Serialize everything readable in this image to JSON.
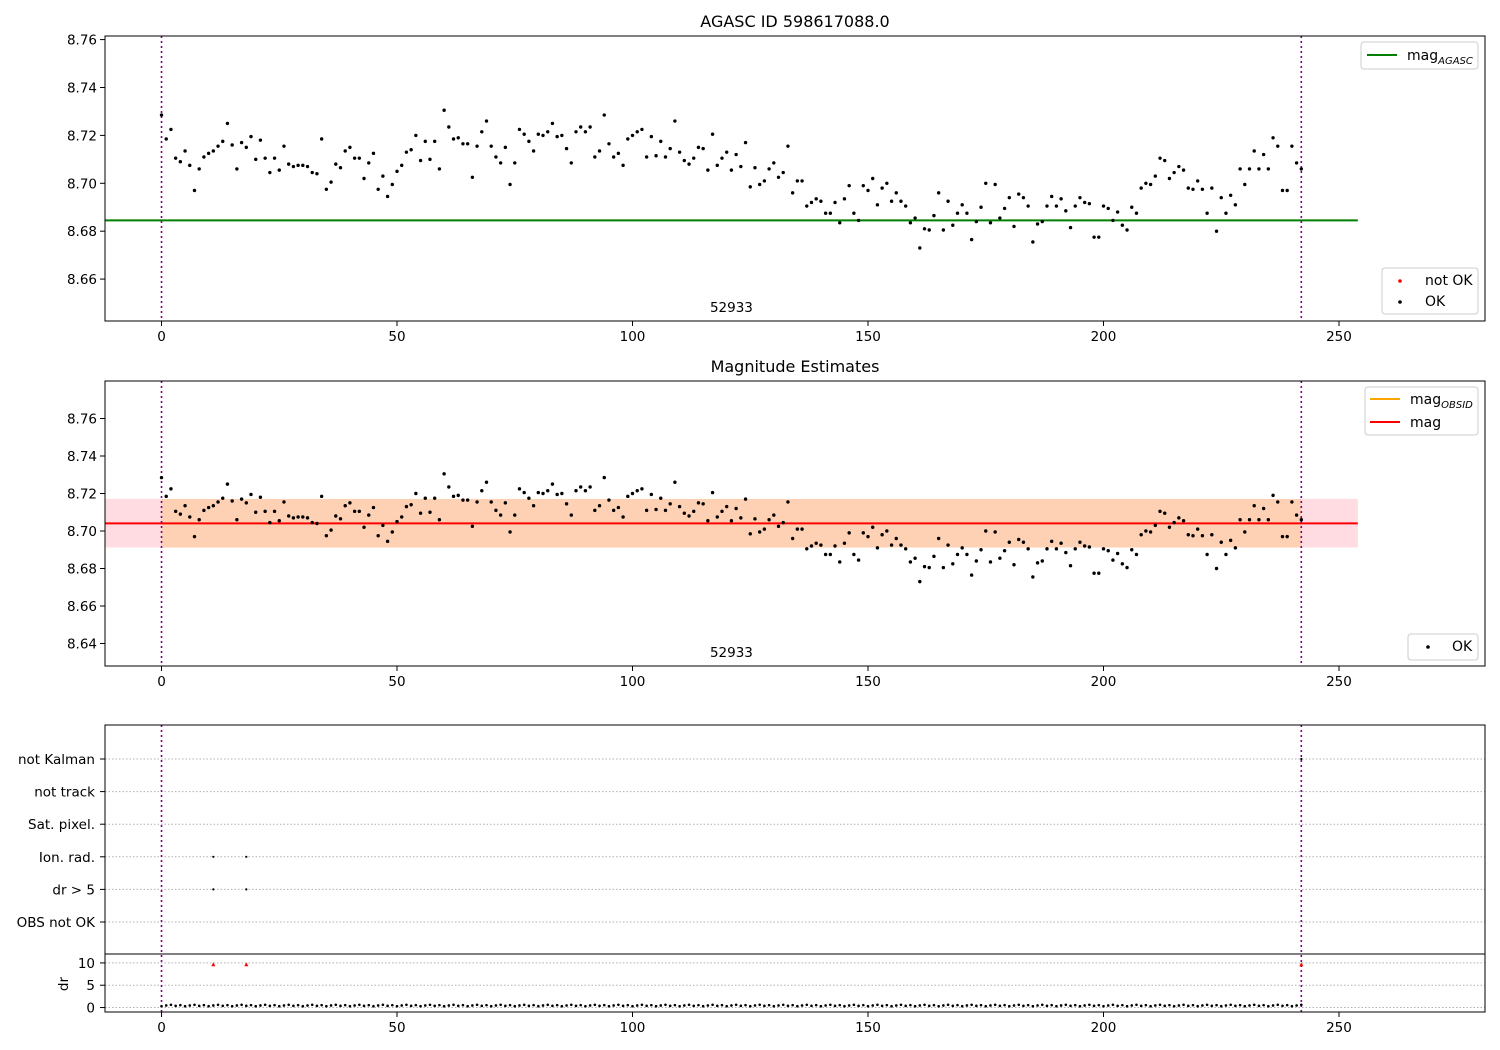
{
  "chart_data": [
    {
      "type": "scatter",
      "title": "AGASC ID 598617088.0",
      "xlabel": "",
      "ylabel": "",
      "xlim": [
        -12,
        281
      ],
      "ylim": [
        8.6425,
        8.7615
      ],
      "x_ticks": [
        "0",
        "50",
        "100",
        "150",
        "200",
        "250"
      ],
      "y_ticks": [
        "8.66",
        "8.68",
        "8.70",
        "8.72",
        "8.74",
        "8.76"
      ],
      "obsid_label": "52933",
      "obs_boundaries": [
        0,
        242
      ],
      "legend_top": [
        {
          "label": "mag",
          "sub": "AGASC",
          "color": "#008000"
        }
      ],
      "legend_bottom": [
        {
          "label": "not OK",
          "color": "#ff0000"
        },
        {
          "label": "OK",
          "color": "#000000"
        }
      ],
      "mag_agasc": 8.6845,
      "reference_line_color": "#008000",
      "series": [
        {
          "name": "OK",
          "color": "#000000",
          "values": [
            8.7285,
            8.7185,
            8.7225,
            8.7105,
            8.709,
            8.7135,
            8.7075,
            8.697,
            8.706,
            8.711,
            8.7125,
            8.7135,
            8.7155,
            8.7175,
            8.725,
            8.716,
            8.706,
            8.717,
            8.715,
            8.7195,
            8.71,
            8.718,
            8.7105,
            8.7045,
            8.7105,
            8.7055,
            8.7155,
            8.708,
            8.707,
            8.7075,
            8.7075,
            8.707,
            8.7045,
            8.704,
            8.7185,
            8.6975,
            8.7005,
            8.708,
            8.7065,
            8.7135,
            8.715,
            8.7105,
            8.7105,
            8.702,
            8.7085,
            8.7125,
            8.6975,
            8.703,
            8.6945,
            8.6995,
            8.705,
            8.7075,
            8.713,
            8.714,
            8.72,
            8.7095,
            8.7175,
            8.71,
            8.7175,
            8.706,
            8.7305,
            8.7235,
            8.7185,
            8.719,
            8.7165,
            8.7165,
            8.7025,
            8.7155,
            8.7215,
            8.726,
            8.7155,
            8.711,
            8.7085,
            8.715,
            8.6995,
            8.7085,
            8.7225,
            8.7205,
            8.7175,
            8.7135,
            8.7205,
            8.72,
            8.7215,
            8.725,
            8.7195,
            8.72,
            8.7145,
            8.7085,
            8.7215,
            8.7235,
            8.7215,
            8.7235,
            8.711,
            8.7135,
            8.7285,
            8.7165,
            8.711,
            8.7125,
            8.7075,
            8.7185,
            8.72,
            8.7215,
            8.7225,
            8.711,
            8.7195,
            8.7115,
            8.7175,
            8.711,
            8.7145,
            8.726,
            8.713,
            8.7095,
            8.708,
            8.7105,
            8.715,
            8.7145,
            8.7055,
            8.7205,
            8.7075,
            8.7105,
            8.713,
            8.7055,
            8.712,
            8.707,
            8.717,
            8.6985,
            8.7065,
            8.6995,
            8.701,
            8.706,
            8.7085,
            8.7025,
            8.7045,
            8.7155,
            8.696,
            8.701,
            8.701,
            8.6905,
            8.692,
            8.6935,
            8.6925,
            8.6875,
            8.6875,
            8.692,
            8.6835,
            8.6935,
            8.699,
            8.6875,
            8.6845,
            8.699,
            8.697,
            8.702,
            8.691,
            8.698,
            8.7,
            8.6925,
            8.696,
            8.6925,
            8.6905,
            8.6835,
            8.6855,
            8.673,
            8.681,
            8.6805,
            8.6865,
            8.696,
            8.6805,
            8.6925,
            8.6825,
            8.6875,
            8.691,
            8.6875,
            8.6765,
            8.684,
            8.69,
            8.7,
            8.6835,
            8.6995,
            8.6855,
            8.6895,
            8.694,
            8.682,
            8.6955,
            8.694,
            8.6905,
            8.6755,
            8.683,
            8.684,
            8.6905,
            8.6945,
            8.6905,
            8.6935,
            8.6885,
            8.6815,
            8.6905,
            8.694,
            8.692,
            8.6915,
            8.6775,
            8.6775,
            8.6905,
            8.6895,
            8.6845,
            8.688,
            8.6825,
            8.6805,
            8.69,
            8.6875,
            8.698,
            8.7,
            8.6995,
            8.703,
            8.7105,
            8.7095,
            8.702,
            8.7045,
            8.707,
            8.7055,
            8.698,
            8.6975,
            8.701,
            8.6975,
            8.6875,
            8.698,
            8.68,
            8.694,
            8.6875,
            8.695,
            8.691,
            8.706,
            8.6995,
            8.706,
            8.7135,
            8.706,
            8.712,
            8.706,
            8.719,
            8.7155,
            8.697,
            8.697,
            8.7155,
            8.7085,
            8.706
          ]
        }
      ]
    },
    {
      "type": "scatter",
      "title": "Magnitude Estimates",
      "xlabel": "",
      "ylabel": "",
      "xlim": [
        -12,
        281
      ],
      "ylim": [
        8.628,
        8.78
      ],
      "x_ticks": [
        "0",
        "50",
        "100",
        "150",
        "200",
        "250"
      ],
      "y_ticks": [
        "8.64",
        "8.66",
        "8.68",
        "8.70",
        "8.72",
        "8.74",
        "8.76"
      ],
      "obsid_label": "52933",
      "obs_boundaries": [
        0,
        242
      ],
      "legend_top": [
        {
          "label": "mag",
          "sub": "OBSID",
          "color": "#ffa500"
        },
        {
          "label": "mag",
          "sub": "",
          "color": "#ff0000"
        }
      ],
      "legend_bottom": [
        {
          "label": "OK",
          "color": "#000000"
        }
      ],
      "mag": 8.7041,
      "mag_band": [
        8.6912,
        8.7171
      ],
      "mag_obsid": 8.7041,
      "band_color": "#ffc0cb",
      "obsid_band_color": "#ffa500",
      "series_ref": "same OK points as top panel"
    },
    {
      "type": "scatter",
      "title": "",
      "xlabel": "",
      "ylabel": "dr",
      "xlim": [
        -12,
        281
      ],
      "flag_rows": [
        "not Kalman",
        "not track",
        "Sat. pixel.",
        "Ion. rad.",
        "dr > 5",
        "OBS not OK"
      ],
      "flag_points": [
        {
          "row": "Ion. rad.",
          "x": [
            11,
            18
          ]
        },
        {
          "row": "dr > 5",
          "x": [
            11,
            18
          ]
        },
        {
          "row": "not Kalman",
          "x": [
            242
          ]
        }
      ],
      "dr_ylim": [
        -1,
        12
      ],
      "dr_ticks": [
        "0",
        "5",
        "10"
      ],
      "dr_large": [
        {
          "x": 11,
          "y": 9.7
        },
        {
          "x": 18,
          "y": 9.7
        },
        {
          "x": 242,
          "y": 9.7
        }
      ],
      "dr_values_baseline": 0.3,
      "x_ticks": [
        "0",
        "50",
        "100",
        "150",
        "200",
        "250"
      ]
    }
  ]
}
